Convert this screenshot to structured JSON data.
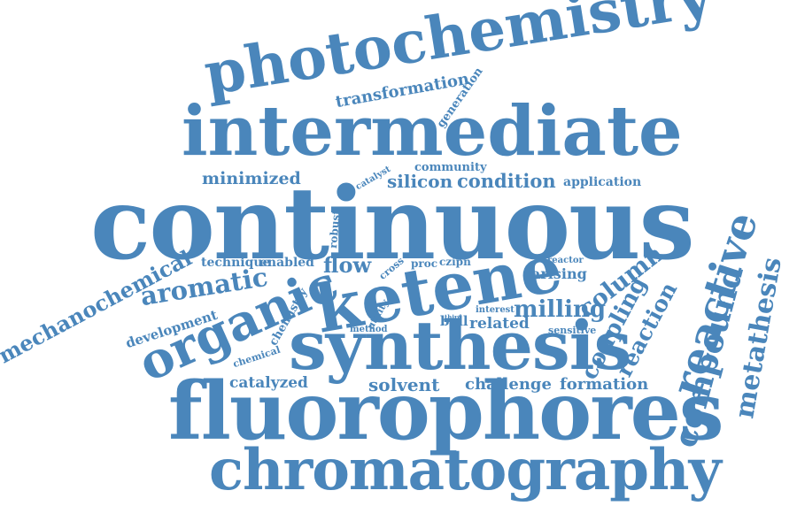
{
  "cloud": {
    "color": "#4a86bb",
    "words": [
      "photochemistry",
      "transformation",
      "generation",
      "intermediate",
      "community",
      "catalyst",
      "minimized",
      "silicon",
      "condition",
      "application",
      "continuous",
      "robust",
      "mechanochemical",
      "technique",
      "enabled",
      "flow",
      "cross",
      "proc",
      "czipn",
      "reactor",
      "arising",
      "aromatic",
      "organic",
      "ketene",
      "column",
      "reactive",
      "compound",
      "metathesis",
      "third",
      "development",
      "chemistry",
      "utility",
      "interest",
      "milling",
      "ball",
      "related",
      "method",
      "sensitive",
      "coupling",
      "reaction",
      "chemical",
      "synthesis",
      "catalyzed",
      "solvent",
      "challenge",
      "formation",
      "fluorophores",
      "chromatography"
    ]
  }
}
